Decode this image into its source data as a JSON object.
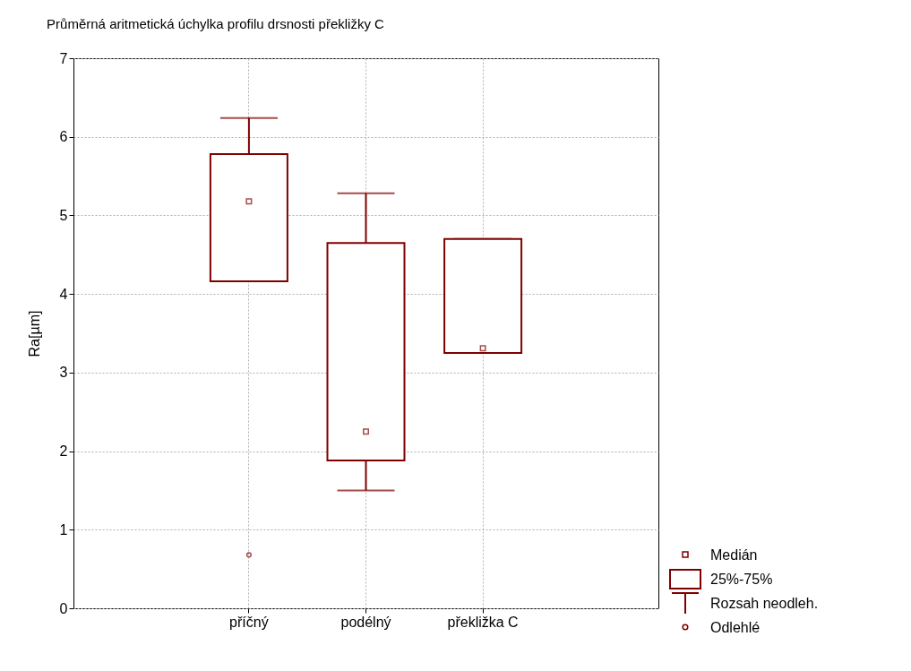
{
  "chart_data": {
    "type": "box",
    "title": "Průměrná aritmetická úchylka profilu drsnosti překližky C",
    "ylabel": "Ra[µm]",
    "categories": [
      "příčný",
      "podélný",
      "překližka C"
    ],
    "series": [
      {
        "color": "#800000",
        "boxes": [
          {
            "low": 4.16,
            "q1": 4.16,
            "median": 5.18,
            "q3": 5.78,
            "high": 6.24,
            "outliers": [
              0.68
            ]
          },
          {
            "low": 1.5,
            "q1": 1.88,
            "median": 2.25,
            "q3": 4.65,
            "high": 5.28
          },
          {
            "low": 3.25,
            "q1": 3.25,
            "median": 3.31,
            "q3": 4.7,
            "high": 4.7
          }
        ]
      }
    ],
    "ylim": [
      0,
      7
    ],
    "yticks": [
      0,
      1,
      2,
      3,
      4,
      5,
      6,
      7
    ],
    "grid": true,
    "annotations": [
      "Medián",
      "25%-75%",
      "Rozsah neodleh.",
      "Odlehlé"
    ]
  }
}
